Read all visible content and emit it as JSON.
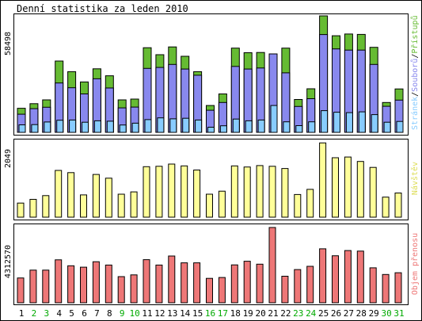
{
  "chart_data": [
    {
      "type": "bar",
      "title": "Denní statistika za leden 2010",
      "ylabel": "58498",
      "ylim": [
        0,
        58498
      ],
      "categories": [
        "1",
        "2",
        "3",
        "4",
        "5",
        "6",
        "7",
        "8",
        "9",
        "10",
        "11",
        "12",
        "13",
        "14",
        "15",
        "16",
        "17",
        "18",
        "19",
        "20",
        "21",
        "22",
        "23",
        "24",
        "25",
        "26",
        "27",
        "28",
        "29",
        "30",
        "31"
      ],
      "series": [
        {
          "name": "Přístupů",
          "color": "#66bb33",
          "values": [
            12100,
            14400,
            16300,
            35800,
            30500,
            25300,
            31900,
            28400,
            16300,
            16700,
            42500,
            39000,
            42900,
            38200,
            30500,
            13500,
            19300,
            42300,
            40000,
            40100,
            38800,
            42300,
            16500,
            21900,
            59500,
            48500,
            49400,
            49200,
            42700,
            15000,
            21800
          ]
        },
        {
          "name": "Souborů",
          "color": "#8888ee",
          "values": [
            9100,
            11900,
            12600,
            24800,
            22400,
            19300,
            26900,
            22300,
            12300,
            12700,
            32100,
            32600,
            34100,
            31800,
            28700,
            11100,
            15000,
            33100,
            31800,
            32300,
            39400,
            29900,
            13000,
            16900,
            49100,
            41900,
            41300,
            41300,
            34100,
            13100,
            16200
          ]
        },
        {
          "name": "Stránek",
          "color": "#88ccff",
          "values": [
            3800,
            3900,
            5200,
            6100,
            6200,
            5100,
            5800,
            5600,
            3700,
            4600,
            6400,
            7300,
            6800,
            7100,
            6200,
            2600,
            3300,
            6700,
            5800,
            6200,
            13500,
            5300,
            3400,
            5300,
            10900,
            10100,
            9900,
            10300,
            8900,
            5100,
            5500
          ]
        }
      ]
    },
    {
      "type": "bar",
      "ylabel": "2049",
      "ylim": [
        0,
        2049
      ],
      "categories": [
        "1",
        "2",
        "3",
        "4",
        "5",
        "6",
        "7",
        "8",
        "9",
        "10",
        "11",
        "12",
        "13",
        "14",
        "15",
        "16",
        "17",
        "18",
        "19",
        "20",
        "21",
        "22",
        "23",
        "24",
        "25",
        "26",
        "27",
        "28",
        "29",
        "30",
        "31"
      ],
      "series": [
        {
          "name": "Návštěv",
          "color": "#ffff99",
          "values": [
            380,
            480,
            580,
            1260,
            1200,
            600,
            1150,
            1050,
            620,
            680,
            1360,
            1370,
            1430,
            1380,
            1270,
            620,
            700,
            1380,
            1350,
            1390,
            1370,
            1310,
            610,
            750,
            2000,
            1600,
            1620,
            1500,
            1340,
            540,
            650
          ]
        }
      ]
    },
    {
      "type": "bar",
      "ylabel": "4312570",
      "ylim": [
        0,
        4312570
      ],
      "categories": [
        "1",
        "2",
        "3",
        "4",
        "5",
        "6",
        "7",
        "8",
        "9",
        "10",
        "11",
        "12",
        "13",
        "14",
        "15",
        "16",
        "17",
        "18",
        "19",
        "20",
        "21",
        "22",
        "23",
        "24",
        "25",
        "26",
        "27",
        "28",
        "29",
        "30",
        "31"
      ],
      "series": [
        {
          "name": "Objem přenosu",
          "color": "#ee7777",
          "values": [
            1420000,
            1870000,
            1870000,
            2460000,
            2120000,
            2040000,
            2350000,
            2160000,
            1500000,
            1600000,
            2470000,
            2160000,
            2680000,
            2290000,
            2290000,
            1400000,
            1450000,
            2170000,
            2380000,
            2210000,
            4350000,
            1520000,
            1900000,
            2090000,
            3090000,
            2690000,
            2990000,
            2960000,
            2000000,
            1620000,
            1720000
          ]
        }
      ]
    }
  ],
  "day_label_colors": {
    "weekday": "#000000",
    "weekend": "#00aa00"
  },
  "weekend_days": [
    "2",
    "3",
    "9",
    "10",
    "16",
    "17",
    "23",
    "24",
    "30",
    "31"
  ]
}
